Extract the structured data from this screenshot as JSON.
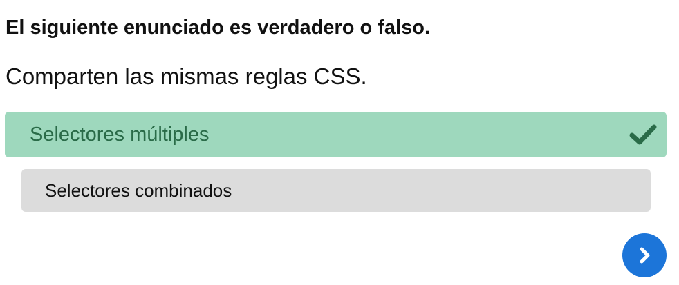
{
  "question": {
    "title": "El siguiente enunciado es verdadero o falso.",
    "statement": "Comparten las mismas reglas CSS."
  },
  "options": [
    {
      "label": "Selectores múltiples",
      "state": "selected-correct",
      "icon": "check-icon",
      "color": "#9ed8bd"
    },
    {
      "label": "Selectores combinados",
      "state": "unselected",
      "color": "#dcdcdc"
    }
  ],
  "navigation": {
    "next_icon": "chevron-right-icon",
    "color": "#1c75d9"
  }
}
